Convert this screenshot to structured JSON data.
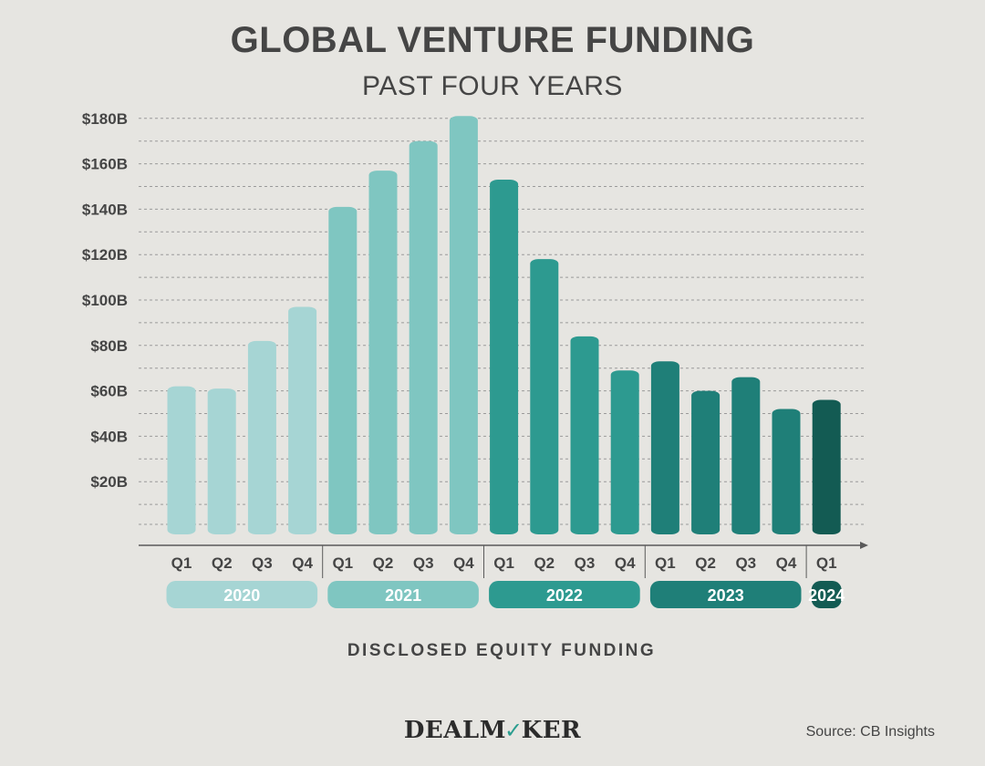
{
  "header": {
    "title": "GLOBAL VENTURE FUNDING",
    "subtitle": "PAST FOUR YEARS"
  },
  "footer": {
    "brand_left": "DEALM",
    "brand_check": "✓",
    "brand_right": "KER",
    "source": "Source: CB Insights"
  },
  "colors": {
    "2020": "#a6d5d4",
    "2021": "#7fc6c1",
    "2022": "#2d9a90",
    "2023": "#1f7f78",
    "2024": "#135b53"
  },
  "chart_data": {
    "type": "bar",
    "title": "GLOBAL VENTURE FUNDING",
    "subtitle": "PAST FOUR YEARS",
    "xlabel": "DISCLOSED EQUITY FUNDING",
    "ylabel": "",
    "ylim": [
      0,
      180
    ],
    "yticks": [
      20,
      40,
      60,
      80,
      100,
      120,
      140,
      160,
      180
    ],
    "ytick_labels": [
      "$20B",
      "$40B",
      "$60B",
      "$80B",
      "$100B",
      "$120B",
      "$140B",
      "$160B",
      "$180B"
    ],
    "grid": true,
    "groups": [
      {
        "year": "2020",
        "quarters": [
          "Q1",
          "Q2",
          "Q3",
          "Q4"
        ],
        "values": [
          62,
          61,
          82,
          97
        ]
      },
      {
        "year": "2021",
        "quarters": [
          "Q1",
          "Q2",
          "Q3",
          "Q4"
        ],
        "values": [
          141,
          157,
          170,
          181
        ]
      },
      {
        "year": "2022",
        "quarters": [
          "Q1",
          "Q2",
          "Q3",
          "Q4"
        ],
        "values": [
          153,
          118,
          84,
          69
        ]
      },
      {
        "year": "2023",
        "quarters": [
          "Q1",
          "Q2",
          "Q3",
          "Q4"
        ],
        "values": [
          73,
          60,
          66,
          52
        ]
      },
      {
        "year": "2024",
        "quarters": [
          "Q1"
        ],
        "values": [
          56
        ]
      }
    ]
  }
}
